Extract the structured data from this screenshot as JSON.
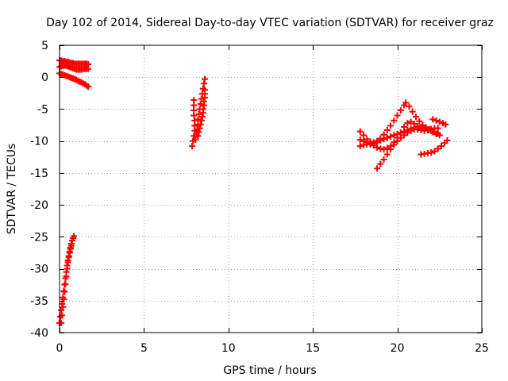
{
  "chart_data": {
    "type": "scatter",
    "title": "Day 102 of 2014, Sidereal Day-to-day VTEC variation (SDTVAR) for receiver graz",
    "xlabel": "GPS time / hours",
    "ylabel": "SDTVAR / TECUs",
    "xlim": [
      0,
      25
    ],
    "ylim": [
      -40,
      5
    ],
    "x_ticks": [
      0,
      5,
      10,
      15,
      20,
      25
    ],
    "y_ticks": [
      5,
      0,
      -5,
      -10,
      -15,
      -20,
      -25,
      -30,
      -35,
      -40
    ],
    "grid": true,
    "legend": "none",
    "marker": "plus",
    "color": "#ff0000",
    "series": [
      {
        "points": [
          [
            0.0,
            2.6
          ],
          [
            0.1,
            2.6
          ],
          [
            0.2,
            2.5
          ],
          [
            0.3,
            2.5
          ],
          [
            0.4,
            2.4
          ],
          [
            0.5,
            2.4
          ],
          [
            0.6,
            2.3
          ],
          [
            0.7,
            2.2
          ],
          [
            0.8,
            2.2
          ],
          [
            0.9,
            2.1
          ],
          [
            1.0,
            2.1
          ],
          [
            1.1,
            2.1
          ],
          [
            1.2,
            2.1
          ],
          [
            1.3,
            2.1
          ],
          [
            1.4,
            2.1
          ],
          [
            1.5,
            2.1
          ],
          [
            1.6,
            2.1
          ],
          [
            1.7,
            2.0
          ],
          [
            0.0,
            1.6
          ],
          [
            0.1,
            1.7
          ],
          [
            0.2,
            1.8
          ],
          [
            0.3,
            1.8
          ],
          [
            0.4,
            1.8
          ],
          [
            0.5,
            1.7
          ],
          [
            0.6,
            1.6
          ],
          [
            0.7,
            1.5
          ],
          [
            0.8,
            1.4
          ],
          [
            0.9,
            1.3
          ],
          [
            1.0,
            1.2
          ],
          [
            1.1,
            1.2
          ],
          [
            1.2,
            1.2
          ],
          [
            1.3,
            1.2
          ],
          [
            1.4,
            1.3
          ],
          [
            1.5,
            1.3
          ],
          [
            1.6,
            1.3
          ],
          [
            1.7,
            1.3
          ],
          [
            0.0,
            0.6
          ],
          [
            0.1,
            0.5
          ],
          [
            0.2,
            0.4
          ],
          [
            0.3,
            0.3
          ],
          [
            0.4,
            0.2
          ],
          [
            0.5,
            0.1
          ],
          [
            0.6,
            0.0
          ],
          [
            0.7,
            -0.1
          ],
          [
            0.8,
            -0.2
          ],
          [
            0.9,
            -0.3
          ],
          [
            1.0,
            -0.4
          ],
          [
            1.1,
            -0.6
          ],
          [
            1.2,
            -0.7
          ],
          [
            1.3,
            -0.8
          ],
          [
            1.4,
            -1.0
          ],
          [
            1.5,
            -1.1
          ],
          [
            1.6,
            -1.3
          ],
          [
            1.7,
            -1.5
          ]
        ]
      },
      {
        "points": [
          [
            0.0,
            -38.5
          ],
          [
            0.05,
            -37.5
          ],
          [
            0.1,
            -36.5
          ],
          [
            0.15,
            -35.5
          ],
          [
            0.2,
            -34.5
          ],
          [
            0.25,
            -33.5
          ],
          [
            0.3,
            -32.5
          ],
          [
            0.35,
            -31.5
          ],
          [
            0.4,
            -30.5
          ],
          [
            0.45,
            -29.5
          ],
          [
            0.5,
            -28.7
          ],
          [
            0.55,
            -28.0
          ],
          [
            0.6,
            -27.3
          ],
          [
            0.65,
            -26.7
          ],
          [
            0.7,
            -26.1
          ],
          [
            0.75,
            -25.6
          ],
          [
            0.8,
            -25.2
          ],
          [
            0.85,
            -24.9
          ],
          [
            0.1,
            -38.5
          ],
          [
            0.15,
            -37.3
          ],
          [
            0.2,
            -36.0
          ],
          [
            0.25,
            -34.8
          ],
          [
            0.3,
            -33.6
          ],
          [
            0.35,
            -32.4
          ],
          [
            0.4,
            -31.2
          ],
          [
            0.45,
            -30.0
          ],
          [
            0.5,
            -29.0
          ],
          [
            0.55,
            -28.2
          ],
          [
            0.6,
            -27.5
          ],
          [
            0.65,
            -26.9
          ],
          [
            0.7,
            -26.4
          ]
        ]
      },
      {
        "points": [
          [
            7.85,
            -10.8
          ],
          [
            7.9,
            -10.0
          ],
          [
            7.95,
            -9.2
          ],
          [
            8.0,
            -8.4
          ],
          [
            8.0,
            -7.6
          ],
          [
            8.0,
            -6.8
          ],
          [
            7.95,
            -6.0
          ],
          [
            7.95,
            -5.2
          ],
          [
            7.95,
            -4.4
          ],
          [
            7.95,
            -3.6
          ],
          [
            8.05,
            -9.8
          ],
          [
            8.1,
            -9.0
          ],
          [
            8.15,
            -8.2
          ],
          [
            8.2,
            -7.4
          ],
          [
            8.2,
            -6.6
          ],
          [
            8.25,
            -5.8
          ],
          [
            8.3,
            -5.0
          ],
          [
            8.35,
            -4.2
          ],
          [
            8.4,
            -3.4
          ],
          [
            8.45,
            -2.6
          ],
          [
            8.5,
            -1.8
          ],
          [
            8.55,
            -1.0
          ],
          [
            8.6,
            -0.3
          ],
          [
            8.2,
            -9.2
          ],
          [
            8.25,
            -8.6
          ],
          [
            8.3,
            -8.0
          ],
          [
            8.35,
            -7.4
          ],
          [
            8.4,
            -6.8
          ],
          [
            8.45,
            -6.2
          ],
          [
            8.5,
            -5.6
          ],
          [
            8.5,
            -5.0
          ],
          [
            8.55,
            -4.4
          ],
          [
            8.55,
            -3.8
          ],
          [
            8.6,
            -3.2
          ],
          [
            8.6,
            -2.6
          ],
          [
            8.6,
            -2.0
          ]
        ]
      },
      {
        "points": [
          [
            17.8,
            -8.5
          ],
          [
            18.0,
            -9.1
          ],
          [
            18.2,
            -9.7
          ],
          [
            18.4,
            -10.1
          ],
          [
            18.6,
            -10.4
          ],
          [
            18.8,
            -10.2
          ],
          [
            19.0,
            -9.9
          ],
          [
            19.2,
            -9.7
          ],
          [
            19.4,
            -9.5
          ],
          [
            19.6,
            -9.3
          ],
          [
            19.8,
            -9.1
          ],
          [
            20.0,
            -8.9
          ],
          [
            20.2,
            -8.7
          ],
          [
            20.4,
            -8.5
          ],
          [
            20.6,
            -8.3
          ],
          [
            20.8,
            -8.1
          ],
          [
            21.0,
            -7.9
          ],
          [
            21.2,
            -7.9
          ],
          [
            21.4,
            -7.9
          ],
          [
            21.6,
            -8.0
          ],
          [
            21.8,
            -8.2
          ],
          [
            22.0,
            -8.4
          ],
          [
            22.2,
            -8.6
          ],
          [
            22.4,
            -8.8
          ],
          [
            17.8,
            -9.8
          ],
          [
            18.0,
            -10.0
          ],
          [
            18.2,
            -10.2
          ],
          [
            18.4,
            -10.3
          ],
          [
            18.6,
            -10.2
          ],
          [
            18.8,
            -10.0
          ],
          [
            19.0,
            -9.6
          ],
          [
            19.2,
            -9.0
          ],
          [
            19.4,
            -8.3
          ],
          [
            19.6,
            -7.6
          ],
          [
            19.8,
            -6.8
          ],
          [
            20.0,
            -6.0
          ],
          [
            20.2,
            -5.2
          ],
          [
            20.4,
            -4.4
          ],
          [
            20.5,
            -4.0
          ],
          [
            20.7,
            -4.6
          ],
          [
            20.9,
            -5.4
          ],
          [
            21.1,
            -6.2
          ],
          [
            21.3,
            -6.9
          ],
          [
            21.5,
            -7.5
          ],
          [
            21.7,
            -7.9
          ],
          [
            21.9,
            -8.2
          ],
          [
            22.1,
            -8.6
          ],
          [
            22.3,
            -8.9
          ],
          [
            22.5,
            -9.1
          ],
          [
            17.8,
            -10.8
          ],
          [
            18.0,
            -10.6
          ],
          [
            18.2,
            -10.5
          ],
          [
            18.4,
            -10.5
          ],
          [
            18.6,
            -10.7
          ],
          [
            18.8,
            -11.0
          ],
          [
            19.0,
            -11.2
          ],
          [
            19.2,
            -11.3
          ],
          [
            19.4,
            -11.1
          ],
          [
            19.6,
            -10.8
          ],
          [
            19.8,
            -10.2
          ],
          [
            20.0,
            -9.5
          ],
          [
            20.2,
            -8.7
          ],
          [
            20.4,
            -7.8
          ],
          [
            20.6,
            -7.2
          ],
          [
            20.8,
            -7.0
          ],
          [
            21.0,
            -7.3
          ],
          [
            21.2,
            -7.7
          ],
          [
            21.4,
            -8.1
          ],
          [
            18.8,
            -14.3
          ],
          [
            19.0,
            -13.6
          ],
          [
            19.2,
            -12.9
          ],
          [
            19.4,
            -12.1
          ],
          [
            19.6,
            -11.3
          ],
          [
            19.8,
            -10.6
          ],
          [
            20.0,
            -10.0
          ],
          [
            20.2,
            -9.5
          ],
          [
            20.4,
            -9.1
          ],
          [
            20.6,
            -8.7
          ],
          [
            20.8,
            -8.4
          ],
          [
            21.0,
            -8.2
          ],
          [
            21.2,
            -8.2
          ],
          [
            21.4,
            -8.3
          ],
          [
            21.6,
            -8.4
          ],
          [
            21.8,
            -8.3
          ],
          [
            22.0,
            -8.1
          ],
          [
            22.2,
            -8.0
          ],
          [
            22.4,
            -8.0
          ],
          [
            21.4,
            -12.1
          ],
          [
            21.6,
            -12.0
          ],
          [
            21.8,
            -11.9
          ],
          [
            22.0,
            -11.8
          ],
          [
            22.2,
            -11.6
          ],
          [
            22.4,
            -11.2
          ],
          [
            22.6,
            -10.8
          ],
          [
            22.8,
            -10.3
          ],
          [
            22.95,
            -9.9
          ],
          [
            22.1,
            -6.6
          ],
          [
            22.3,
            -6.8
          ],
          [
            22.5,
            -7.0
          ],
          [
            22.7,
            -7.2
          ],
          [
            22.85,
            -7.4
          ]
        ]
      }
    ]
  }
}
